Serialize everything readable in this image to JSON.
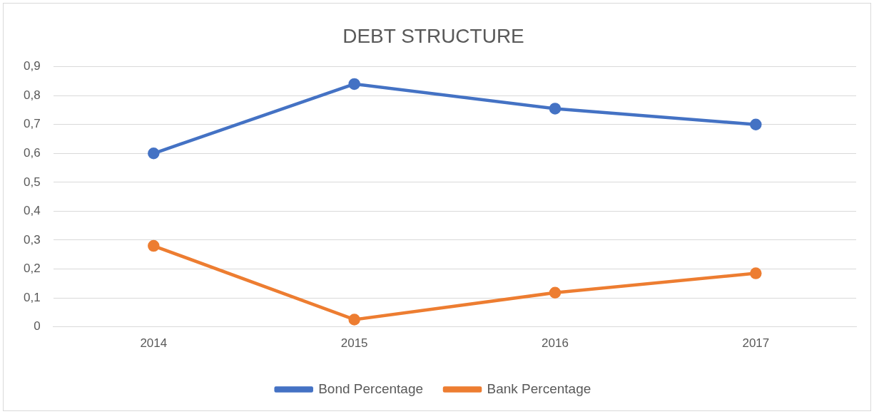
{
  "chart_data": {
    "type": "line",
    "title": "DEBT STRUCTURE",
    "categories": [
      "2014",
      "2015",
      "2016",
      "2017"
    ],
    "series": [
      {
        "name": "Bond Percentage",
        "color": "#4472c4",
        "values": [
          0.6,
          0.84,
          0.755,
          0.7
        ]
      },
      {
        "name": "Bank Percentage",
        "color": "#ed7d31",
        "values": [
          0.28,
          0.025,
          0.118,
          0.185
        ]
      }
    ],
    "ylim": [
      0,
      0.9
    ],
    "yticks": [
      0,
      {
        "value": 0.1,
        "label": "0,1"
      },
      {
        "value": 0.2,
        "label": "0,2"
      },
      {
        "value": 0.3,
        "label": "0,3"
      },
      {
        "value": 0.4,
        "label": "0,4"
      },
      {
        "value": 0.5,
        "label": "0,5"
      },
      {
        "value": 0.6,
        "label": "0,6"
      },
      {
        "value": 0.7,
        "label": "0,7"
      },
      {
        "value": 0.8,
        "label": "0,8"
      },
      {
        "value": 0.9,
        "label": "0,9"
      }
    ],
    "grid": "y",
    "legend": "bottom",
    "marker": "circle",
    "line_style": "solid"
  }
}
